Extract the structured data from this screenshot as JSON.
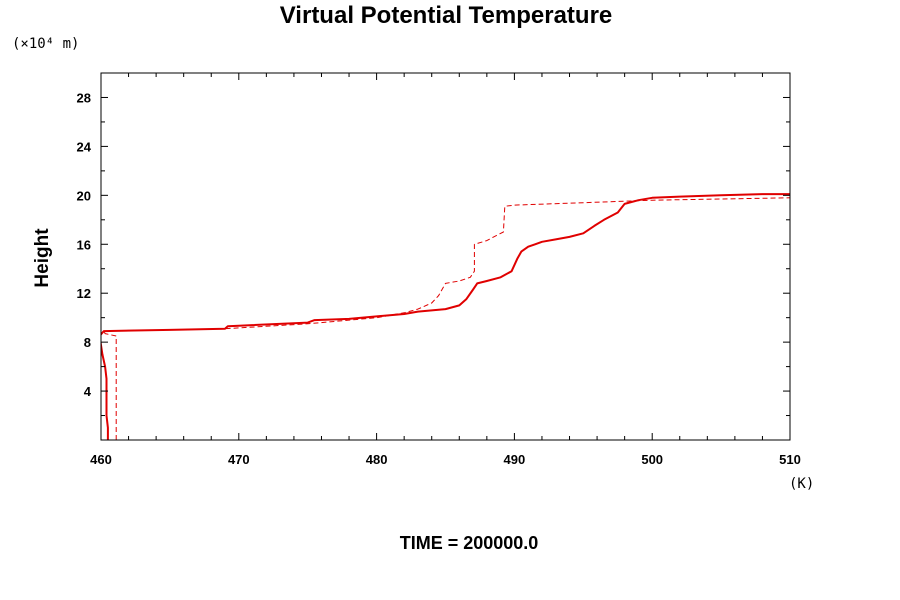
{
  "chart_data": {
    "type": "line",
    "title": "Virtual Potential Temperature",
    "ylabel": "Height",
    "y_unit": "(×10⁴ m)",
    "x_unit": "(K)",
    "footer": "TIME = 200000.0",
    "xlim": [
      460,
      510
    ],
    "ylim": [
      0,
      30
    ],
    "x_ticks": [
      460,
      470,
      480,
      490,
      500,
      510
    ],
    "x_tick_labels": [
      "460",
      "470",
      "480",
      "490",
      "500",
      "510"
    ],
    "y_ticks": [
      4,
      8,
      12,
      16,
      20,
      24,
      28
    ],
    "y_tick_labels": [
      "4",
      "8",
      "12",
      "16",
      "20",
      "24",
      "28"
    ],
    "grid": false,
    "color": "#e00000",
    "series": [
      {
        "style": "solid",
        "x": [
          460.5,
          460.5,
          460.4,
          460.4,
          460.4,
          460.4,
          460.3,
          460.1,
          459.9,
          460.2,
          465,
          469,
          469.2,
          475,
          475.5,
          478,
          480,
          482,
          483,
          485,
          486,
          486.5,
          487,
          487.3,
          488,
          489,
          489.8,
          490.2,
          490.5,
          491,
          491.5,
          492,
          493,
          494,
          495,
          495.8,
          496.5,
          497.5,
          498,
          499,
          500,
          502,
          505,
          508,
          510
        ],
        "y": [
          0,
          1,
          2,
          3,
          4,
          5,
          6,
          7,
          8.5,
          8.9,
          9.0,
          9.1,
          9.3,
          9.6,
          9.8,
          9.9,
          10.1,
          10.3,
          10.5,
          10.7,
          11.0,
          11.5,
          12.3,
          12.8,
          13.0,
          13.3,
          13.8,
          14.8,
          15.4,
          15.8,
          16.0,
          16.2,
          16.4,
          16.6,
          16.9,
          17.5,
          18.0,
          18.6,
          19.3,
          19.6,
          19.8,
          19.9,
          20.0,
          20.1,
          20.1
        ]
      },
      {
        "style": "dashed",
        "x": [
          461.1,
          461.1,
          460.3,
          460.2,
          469,
          475,
          480,
          482,
          483,
          484,
          484.5,
          485,
          486,
          486.8,
          487.1,
          487.1,
          488,
          488.5,
          489.2,
          489.3,
          490,
          495,
          500,
          505,
          510
        ],
        "y": [
          0,
          8.5,
          8.7,
          8.9,
          9.1,
          9.5,
          10.0,
          10.4,
          10.7,
          11.2,
          11.8,
          12.8,
          13.0,
          13.3,
          13.8,
          16.0,
          16.3,
          16.6,
          17.0,
          19.1,
          19.2,
          19.4,
          19.6,
          19.7,
          19.8
        ]
      }
    ]
  }
}
